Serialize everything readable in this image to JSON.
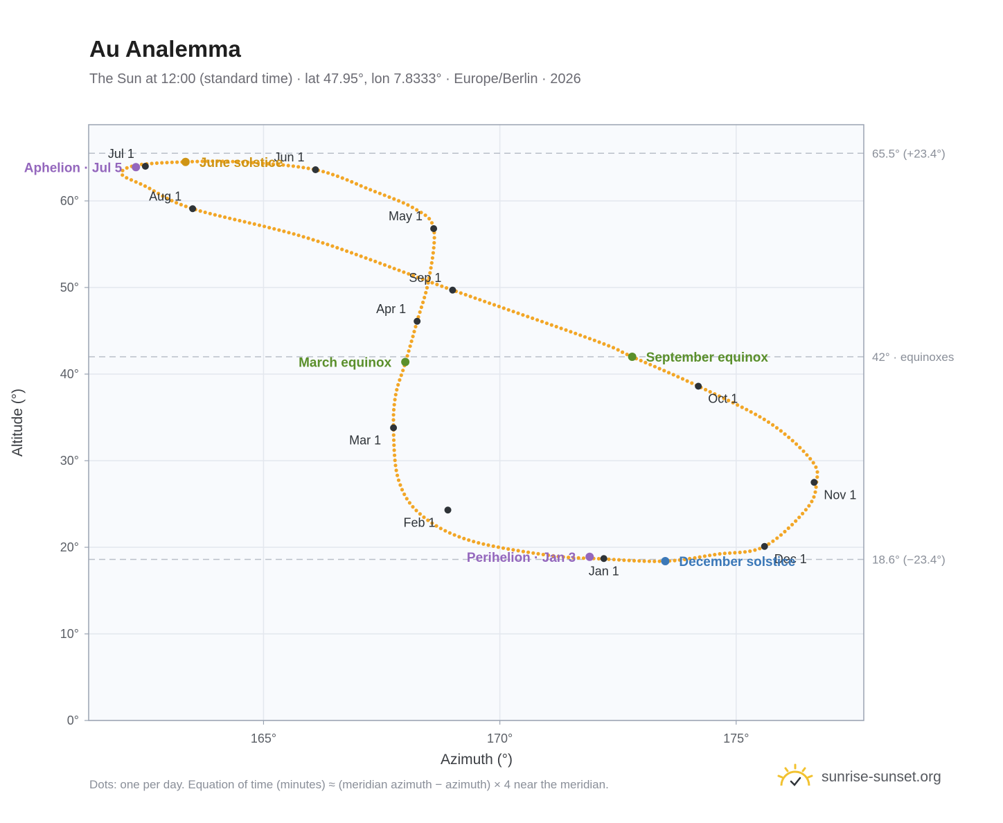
{
  "title": "Au Analemma",
  "subtitle": "The Sun at 12:00 (standard time) · lat 47.95°, lon 7.8333° · Europe/Berlin · 2026",
  "footnote": "Dots: one per day. Equation of time (minutes) ≈ (meridian azimuth − azimuth) × 4 near the meridian.",
  "brand": {
    "text": "sunrise-sunset.org",
    "icon": "sun-logo-icon"
  },
  "colors": {
    "path": "#f2a626",
    "month_marker": "#2e3338",
    "aphelion": "#9467bd",
    "perihelion": "#9467bd",
    "june_solstice": "#cf9414",
    "december_solstice": "#3b78b8",
    "equinox": "#5a8f2b",
    "reference_line": "#b9bfc9",
    "plot_bg": "#f8fafd",
    "grid": "#e3e7ee"
  },
  "chart_data": {
    "type": "scatter",
    "xlabel": "Azimuth (°)",
    "ylabel": "Altitude (°)",
    "xlim": [
      161.3,
      177.7
    ],
    "ylim": [
      0,
      68.8
    ],
    "x_ticks": [
      165,
      170,
      175
    ],
    "x_tick_labels": [
      "165°",
      "170°",
      "175°"
    ],
    "y_ticks": [
      0,
      10,
      20,
      30,
      40,
      50,
      60
    ],
    "y_tick_labels": [
      "0°",
      "10°",
      "20°",
      "30°",
      "40°",
      "50°",
      "60°"
    ],
    "grid": true,
    "path_anchors": [
      [
        172.2,
        18.65
      ],
      [
        171.0,
        19.1
      ],
      [
        169.3,
        20.9
      ],
      [
        168.3,
        23.9
      ],
      [
        167.85,
        27.9
      ],
      [
        167.75,
        33.8
      ],
      [
        167.8,
        37.7
      ],
      [
        168.0,
        41.3
      ],
      [
        168.25,
        46.1
      ],
      [
        168.5,
        51.0
      ],
      [
        168.6,
        56.8
      ],
      [
        168.2,
        59.1
      ],
      [
        167.3,
        61.2
      ],
      [
        166.1,
        63.6
      ],
      [
        164.5,
        64.5
      ],
      [
        163.3,
        64.5
      ],
      [
        162.3,
        64.1
      ],
      [
        162.0,
        63.1
      ],
      [
        162.5,
        61.7
      ],
      [
        163.5,
        59.1
      ],
      [
        166.0,
        55.6
      ],
      [
        169.0,
        49.7
      ],
      [
        172.0,
        43.9
      ],
      [
        172.8,
        42.0
      ],
      [
        174.2,
        38.6
      ],
      [
        175.7,
        34.4
      ],
      [
        176.6,
        30.0
      ],
      [
        176.7,
        27.5
      ],
      [
        176.5,
        24.5
      ],
      [
        175.6,
        20.1
      ],
      [
        174.6,
        19.2
      ],
      [
        173.5,
        18.4
      ],
      [
        172.2,
        18.65
      ]
    ],
    "daily_dot_count": 365,
    "months": [
      {
        "label": "Jan 1",
        "x": 172.2,
        "y": 18.7,
        "anchor": "below"
      },
      {
        "label": "Feb 1",
        "x": 168.9,
        "y": 24.3,
        "anchor": "below-left"
      },
      {
        "label": "Mar 1",
        "x": 167.75,
        "y": 33.8,
        "anchor": "below-left"
      },
      {
        "label": "Apr 1",
        "x": 168.25,
        "y": 46.1,
        "anchor": "above-left"
      },
      {
        "label": "May 1",
        "x": 168.6,
        "y": 56.8,
        "anchor": "above-left"
      },
      {
        "label": "Jun 1",
        "x": 166.1,
        "y": 63.6,
        "anchor": "above-left"
      },
      {
        "label": "Jul 1",
        "x": 162.5,
        "y": 64.0,
        "anchor": "above-left"
      },
      {
        "label": "Aug 1",
        "x": 163.5,
        "y": 59.1,
        "anchor": "above-left"
      },
      {
        "label": "Sep 1",
        "x": 169.0,
        "y": 49.7,
        "anchor": "above-left"
      },
      {
        "label": "Oct 1",
        "x": 174.2,
        "y": 38.6,
        "anchor": "below-right"
      },
      {
        "label": "Nov 1",
        "x": 176.65,
        "y": 27.5,
        "anchor": "below-right"
      },
      {
        "label": "Dec 1",
        "x": 175.6,
        "y": 20.1,
        "anchor": "below-right"
      }
    ],
    "events": [
      {
        "label": "Aphelion · Jul 5",
        "x": 162.3,
        "y": 63.9,
        "color_key": "aphelion",
        "side": "left"
      },
      {
        "label": "June solstice",
        "x": 163.35,
        "y": 64.5,
        "color_key": "june_solstice",
        "side": "right"
      },
      {
        "label": "March equinox",
        "x": 168.0,
        "y": 41.4,
        "color_key": "equinox",
        "side": "left"
      },
      {
        "label": "September equinox",
        "x": 172.8,
        "y": 42.0,
        "color_key": "equinox",
        "side": "right"
      },
      {
        "label": "Perihelion · Jan 3",
        "x": 171.9,
        "y": 18.9,
        "color_key": "perihelion",
        "side": "left"
      },
      {
        "label": "December solstice",
        "x": 173.5,
        "y": 18.4,
        "color_key": "december_solstice",
        "side": "right"
      }
    ],
    "reference_lines": [
      {
        "y": 65.5,
        "label": "65.5° (+23.4°)"
      },
      {
        "y": 42.0,
        "label": "42° · equinoxes"
      },
      {
        "y": 18.6,
        "label": "18.6° (−23.4°)"
      }
    ]
  }
}
